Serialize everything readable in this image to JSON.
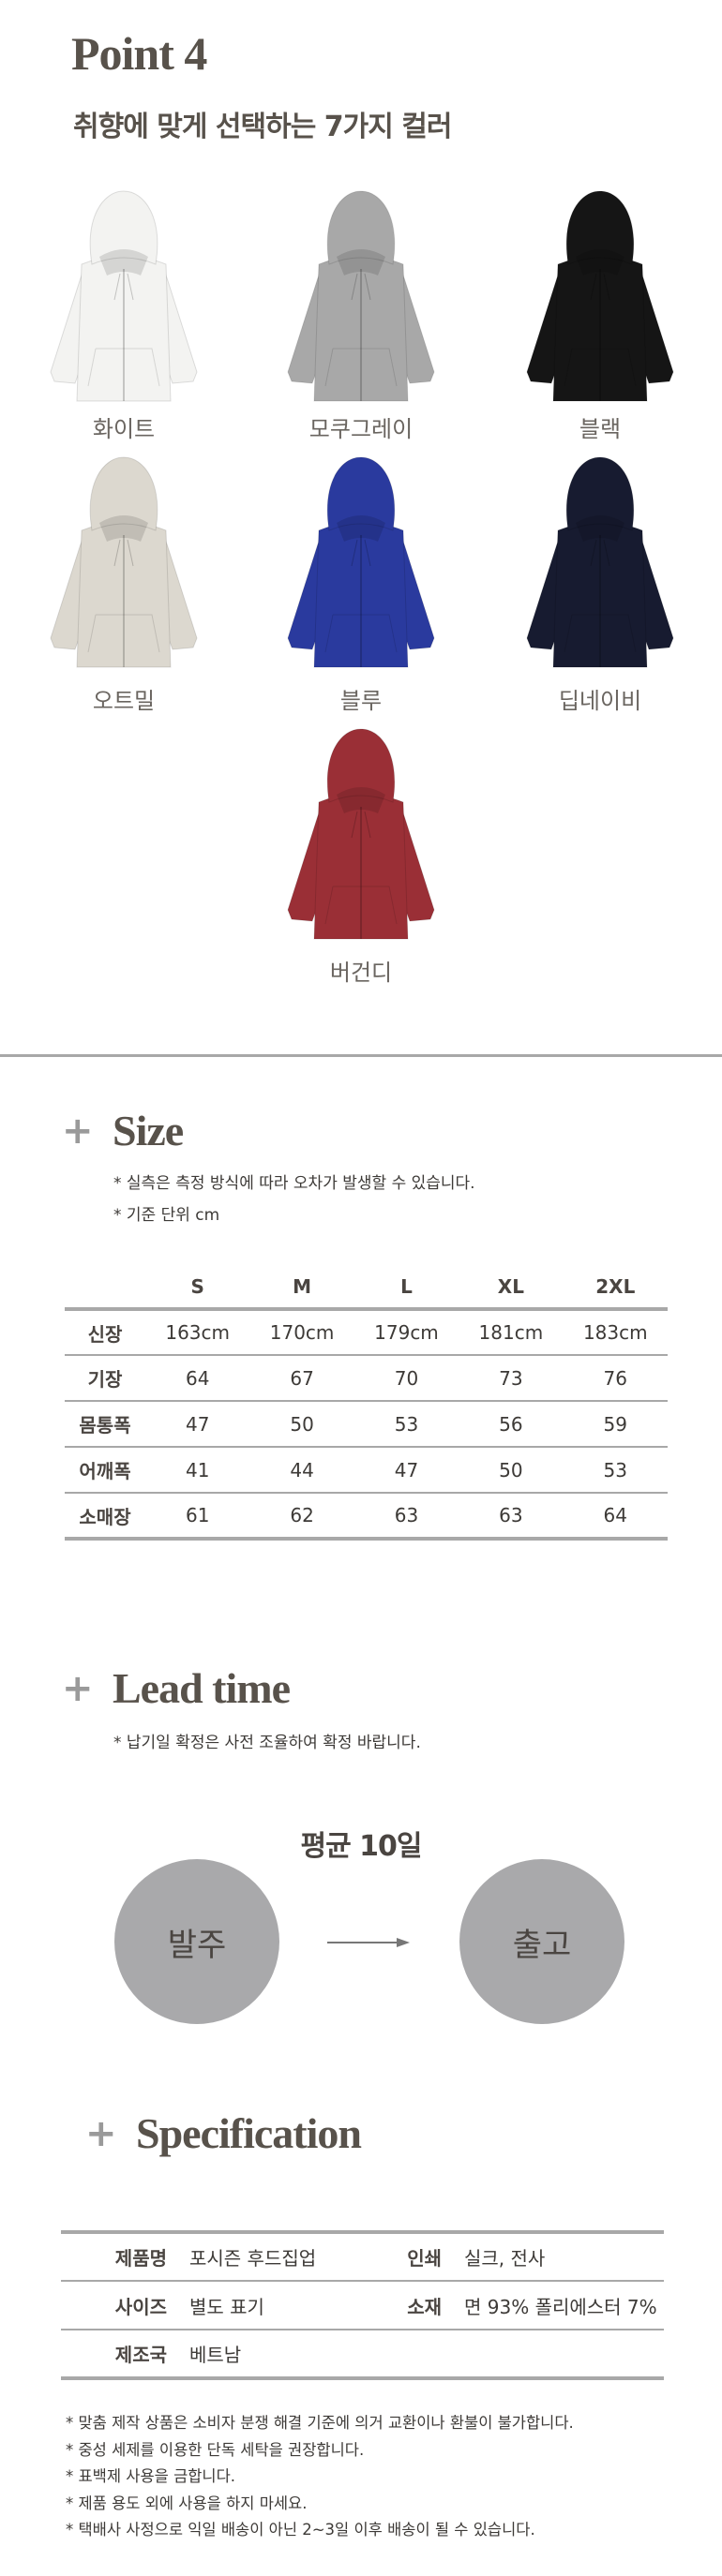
{
  "point": {
    "title": "Point 4",
    "subtitle": "취향에 맞게 선택하는 7가지 컬러"
  },
  "colors": [
    {
      "label": "화이트",
      "hex": "#f3f3f1"
    },
    {
      "label": "모쿠그레이",
      "hex": "#a8a8a8"
    },
    {
      "label": "블랙",
      "hex": "#151515"
    },
    {
      "label": "오트밀",
      "hex": "#dcd8cf"
    },
    {
      "label": "블루",
      "hex": "#2a3a9e"
    },
    {
      "label": "딥네이비",
      "hex": "#171b30"
    },
    {
      "label": "버건디",
      "hex": "#9a2f36"
    }
  ],
  "size": {
    "plus": "+",
    "title": "Size",
    "notes": [
      "* 실측은 측정 방식에 따라 오차가 발생할 수 있습니다.",
      "* 기준 단위 cm"
    ],
    "columns": [
      "",
      "S",
      "M",
      "L",
      "XL",
      "2XL"
    ],
    "rows": [
      [
        "신장",
        "163cm",
        "170cm",
        "179cm",
        "181cm",
        "183cm"
      ],
      [
        "기장",
        "64",
        "67",
        "70",
        "73",
        "76"
      ],
      [
        "몸통폭",
        "47",
        "50",
        "53",
        "56",
        "59"
      ],
      [
        "어깨폭",
        "41",
        "44",
        "47",
        "50",
        "53"
      ],
      [
        "소매장",
        "61",
        "62",
        "63",
        "63",
        "64"
      ]
    ]
  },
  "lead_time": {
    "plus": "+",
    "title": "Lead time",
    "note": "* 납기일 확정은 사전 조율하여 확정 바랍니다.",
    "average": "평균 10일",
    "from": "발주",
    "to": "출고"
  },
  "spec": {
    "plus": "+",
    "title": "Specification",
    "rows": [
      [
        "제품명",
        "포시즌 후드집업",
        "인쇄",
        "실크, 전사"
      ],
      [
        "사이즈",
        "별도 표기",
        "소재",
        "면 93% 폴리에스터 7%"
      ],
      [
        "제조국",
        "베트남",
        "",
        ""
      ]
    ],
    "notes": [
      "*  맞춤 제작 상품은 소비자 분쟁 해결 기준에 의거 교환이나 환불이 불가합니다.",
      "*  중성 세제를 이용한 단독 세탁을 권장합니다.",
      "*  표백제 사용을 금합니다.",
      "*  제품 용도 외에 사용을 하지 마세요.",
      "*  택배사 사정으로 익일 배송이 아닌 2~3일 이후 배송이 될 수 있습니다."
    ]
  }
}
